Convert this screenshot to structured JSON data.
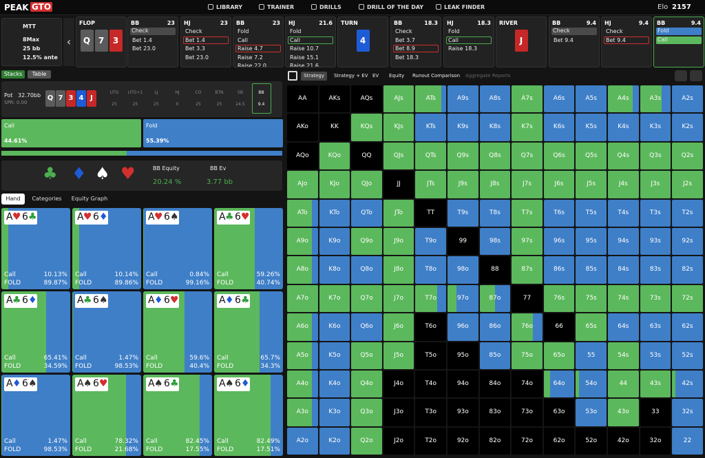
{
  "header": {
    "logo_a": "PEAK",
    "logo_b": "GTO",
    "nav": [
      "LIBRARY",
      "TRAINER",
      "DRILLS",
      "DRILL OF THE DAY",
      "LEAK FINDER"
    ],
    "elo_label": "Elo",
    "elo": "2157"
  },
  "game": {
    "format": "MTT",
    "table": "8Max",
    "stack": "25 bb",
    "ante": "12.5% ante"
  },
  "strip": [
    {
      "street": "FLOP",
      "cards": [
        {
          "rank": "Q",
          "color": "#5b5b5b"
        },
        {
          "rank": "7",
          "color": "#5b5b5b"
        },
        {
          "rank": "3",
          "color": "#c62828"
        }
      ]
    },
    {
      "pos": "BB",
      "stack": "23",
      "actions": [
        "Check",
        "Bet 1.4",
        "Bet 23.0"
      ],
      "chosen": 0,
      "style": "gray"
    },
    {
      "pos": "HJ",
      "stack": "23",
      "actions": [
        "Check",
        "Bet 1.4",
        "Bet 3.3",
        "Bet 23.0"
      ],
      "chosen": 1,
      "style": "red"
    },
    {
      "pos": "BB",
      "stack": "23",
      "actions": [
        "Fold",
        "Call",
        "Raise 4.7",
        "Raise 7.2",
        "Raise 22.0"
      ],
      "chosen": 2,
      "style": "red"
    },
    {
      "pos": "HJ",
      "stack": "21.6",
      "actions": [
        "Fold",
        "Call",
        "Raise 10.7",
        "Raise 15.1",
        "Raise 21.6"
      ],
      "chosen": 1,
      "style": "green"
    },
    {
      "street": "TURN",
      "cards": [
        {
          "rank": "4",
          "color": "#1e5bd6"
        }
      ]
    },
    {
      "pos": "BB",
      "stack": "18.3",
      "actions": [
        "Check",
        "Bet 3.7",
        "Bet 8.9",
        "Bet 18.3"
      ],
      "chosen": 2,
      "style": "red"
    },
    {
      "pos": "HJ",
      "stack": "18.3",
      "actions": [
        "Fold",
        "Call",
        "Raise 18.3"
      ],
      "chosen": 1,
      "style": "green"
    },
    {
      "street": "RIVER",
      "cards": [
        {
          "rank": "J",
          "color": "#c62828"
        }
      ]
    },
    {
      "pos": "BB",
      "stack": "9.4",
      "actions": [
        "Check",
        "Bet 9.4"
      ],
      "chosen": 0,
      "style": "gray"
    },
    {
      "pos": "HJ",
      "stack": "9.4",
      "actions": [
        "Check",
        "Bet 9.4"
      ],
      "chosen": 1,
      "style": "red"
    },
    {
      "pos": "BB",
      "stack": "9.4",
      "actions": [
        "Fold",
        "Call"
      ],
      "chosen": null,
      "style": "fill",
      "active": true
    }
  ],
  "left": {
    "tabs": [
      "Stacks",
      "Table"
    ],
    "pot_label": "Pot",
    "pot": "32.70bb",
    "spr": "SPR: 0.00",
    "board": [
      {
        "rank": "Q",
        "color": "#5b5b5b"
      },
      {
        "rank": "7",
        "color": "#5b5b5b"
      },
      {
        "rank": "3",
        "color": "#c62828"
      },
      {
        "rank": "4",
        "color": "#1e5bd6"
      },
      {
        "rank": "J",
        "color": "#c62828"
      }
    ],
    "positions": [
      "UTG",
      "UTG+1",
      "LJ",
      "HJ",
      "CO",
      "BTN",
      "SB",
      "BB"
    ],
    "stacks": [
      "25",
      "25",
      "25",
      "0",
      "25",
      "25",
      "24.5",
      "9.4"
    ],
    "active_position": 7,
    "strategy": [
      {
        "name": "Call",
        "pct": {
          "value": 44.61,
          "label": "44.61%"
        },
        "color": "#5cb85c"
      },
      {
        "name": "Fold",
        "pct": {
          "value": 55.39,
          "label": "55.39%"
        },
        "color": "#3f7fc8"
      }
    ],
    "suits": [
      {
        "s": "♣",
        "color": "#4caf50"
      },
      {
        "s": "♦",
        "color": "#1e5bd6"
      },
      {
        "s": "♠",
        "color": "#ffffff"
      },
      {
        "s": "♥",
        "color": "#d32f2f"
      }
    ],
    "equity_label": "BB Equity",
    "equity": "20.24 %",
    "ev_label": "BB Ev",
    "ev": "3.77 bb",
    "hand_tabs": [
      "Hand",
      "Categories",
      "Equity Graph"
    ],
    "call_label": "Call",
    "fold_label": "FOLD",
    "hands": [
      {
        "cards": [
          [
            "A",
            "♥"
          ],
          [
            "6",
            "♣"
          ]
        ],
        "call": {
          "value": 10.13,
          "label": "10.13%"
        },
        "fold": {
          "value": 89.87,
          "label": "89.87%"
        }
      },
      {
        "cards": [
          [
            "A",
            "♥"
          ],
          [
            "6",
            "♦"
          ]
        ],
        "call": {
          "value": 10.14,
          "label": "10.14%"
        },
        "fold": {
          "value": 89.86,
          "label": "89.86%"
        }
      },
      {
        "cards": [
          [
            "A",
            "♥"
          ],
          [
            "6",
            "♠"
          ]
        ],
        "call": {
          "value": 0.84,
          "label": "0.84%"
        },
        "fold": {
          "value": 99.16,
          "label": "99.16%"
        }
      },
      {
        "cards": [
          [
            "A",
            "♣"
          ],
          [
            "6",
            "♥"
          ]
        ],
        "call": {
          "value": 59.26,
          "label": "59.26%"
        },
        "fold": {
          "value": 40.74,
          "label": "40.74%"
        }
      },
      {
        "cards": [
          [
            "A",
            "♣"
          ],
          [
            "6",
            "♦"
          ]
        ],
        "call": {
          "value": 65.41,
          "label": "65.41%"
        },
        "fold": {
          "value": 34.59,
          "label": "34.59%"
        }
      },
      {
        "cards": [
          [
            "A",
            "♣"
          ],
          [
            "6",
            "♠"
          ]
        ],
        "call": {
          "value": 1.47,
          "label": "1.47%"
        },
        "fold": {
          "value": 98.53,
          "label": "98.53%"
        }
      },
      {
        "cards": [
          [
            "A",
            "♦"
          ],
          [
            "6",
            "♥"
          ]
        ],
        "call": {
          "value": 59.6,
          "label": "59.6%"
        },
        "fold": {
          "value": 40.4,
          "label": "40.4%"
        }
      },
      {
        "cards": [
          [
            "A",
            "♦"
          ],
          [
            "6",
            "♣"
          ]
        ],
        "call": {
          "value": 65.7,
          "label": "65.7%"
        },
        "fold": {
          "value": 34.3,
          "label": "34.3%"
        }
      },
      {
        "cards": [
          [
            "A",
            "♦"
          ],
          [
            "6",
            "♠"
          ]
        ],
        "call": {
          "value": 1.47,
          "label": "1.47%"
        },
        "fold": {
          "value": 98.53,
          "label": "98.53%"
        }
      },
      {
        "cards": [
          [
            "A",
            "♠"
          ],
          [
            "6",
            "♥"
          ]
        ],
        "call": {
          "value": 78.32,
          "label": "78.32%"
        },
        "fold": {
          "value": 21.68,
          "label": "21.68%"
        }
      },
      {
        "cards": [
          [
            "A",
            "♠"
          ],
          [
            "6",
            "♣"
          ]
        ],
        "call": {
          "value": 82.45,
          "label": "82.45%"
        },
        "fold": {
          "value": 17.55,
          "label": "17.55%"
        }
      },
      {
        "cards": [
          [
            "A",
            "♠"
          ],
          [
            "6",
            "♦"
          ]
        ],
        "call": {
          "value": 82.49,
          "label": "82.49%"
        },
        "fold": {
          "value": 17.51,
          "label": "17.51%"
        }
      }
    ]
  },
  "toolbar": [
    "Strategy",
    "Strategy + EV",
    "EV",
    "Equity",
    "Runout Comparison",
    "Aggregate Reports"
  ],
  "matrix": {
    "labels": [
      [
        "AA",
        "AKs",
        "AQs",
        "AJs",
        "ATs",
        "A9s",
        "A8s",
        "A7s",
        "A6s",
        "A5s",
        "A4s",
        "A3s",
        "A2s"
      ],
      [
        "AKo",
        "KK",
        "KQs",
        "KJs",
        "KTs",
        "K9s",
        "K8s",
        "K7s",
        "K6s",
        "K5s",
        "K4s",
        "K3s",
        "K2s"
      ],
      [
        "AQo",
        "KQo",
        "QQ",
        "QJs",
        "QTs",
        "Q9s",
        "Q8s",
        "Q7s",
        "Q6s",
        "Q5s",
        "Q4s",
        "Q3s",
        "Q2s"
      ],
      [
        "AJo",
        "KJo",
        "QJo",
        "JJ",
        "JTs",
        "J9s",
        "J8s",
        "J7s",
        "J6s",
        "J5s",
        "J4s",
        "J3s",
        "J2s"
      ],
      [
        "ATo",
        "KTo",
        "QTo",
        "JTo",
        "TT",
        "T9s",
        "T8s",
        "T7s",
        "T6s",
        "T5s",
        "T4s",
        "T3s",
        "T2s"
      ],
      [
        "A9o",
        "K9o",
        "Q9o",
        "J9o",
        "T9o",
        "99",
        "98s",
        "97s",
        "96s",
        "95s",
        "94s",
        "93s",
        "92s"
      ],
      [
        "A8o",
        "K8o",
        "Q8o",
        "J8o",
        "T8o",
        "98o",
        "88",
        "87s",
        "86s",
        "85s",
        "84s",
        "83s",
        "82s"
      ],
      [
        "A7o",
        "K7o",
        "Q7o",
        "J7o",
        "T7o",
        "97o",
        "87o",
        "77",
        "76s",
        "75s",
        "74s",
        "73s",
        "72s"
      ],
      [
        "A6o",
        "K6o",
        "Q6o",
        "J6o",
        "T6o",
        "96o",
        "86o",
        "76o",
        "66",
        "65s",
        "64s",
        "63s",
        "62s"
      ],
      [
        "A5o",
        "K5o",
        "Q5o",
        "J5o",
        "T5o",
        "95o",
        "85o",
        "75o",
        "65o",
        "55",
        "54s",
        "53s",
        "52s"
      ],
      [
        "A4o",
        "K4o",
        "Q4o",
        "J4o",
        "T4o",
        "94o",
        "84o",
        "74o",
        "64o",
        "54o",
        "44",
        "43s",
        "42s"
      ],
      [
        "A3o",
        "K3o",
        "Q3o",
        "J3o",
        "T3o",
        "93o",
        "83o",
        "73o",
        "63o",
        "53o",
        "43o",
        "33",
        "32s"
      ],
      [
        "A2o",
        "K2o",
        "Q2o",
        "J2o",
        "T2o",
        "92o",
        "82o",
        "72o",
        "62o",
        "52o",
        "42o",
        "32o",
        "22"
      ]
    ],
    "call": [
      [
        null,
        null,
        null,
        100,
        85,
        0,
        0,
        100,
        0,
        0,
        80,
        70,
        0
      ],
      [
        null,
        null,
        100,
        100,
        0,
        0,
        0,
        100,
        0,
        0,
        0,
        0,
        0
      ],
      [
        null,
        100,
        null,
        100,
        100,
        100,
        100,
        100,
        100,
        100,
        100,
        100,
        100
      ],
      [
        100,
        100,
        100,
        null,
        100,
        100,
        100,
        100,
        100,
        100,
        100,
        100,
        100
      ],
      [
        80,
        0,
        0,
        100,
        null,
        0,
        0,
        100,
        0,
        0,
        0,
        0,
        0
      ],
      [
        80,
        0,
        100,
        100,
        0,
        null,
        0,
        100,
        0,
        0,
        0,
        0,
        0
      ],
      [
        80,
        0,
        0,
        100,
        0,
        0,
        null,
        100,
        0,
        0,
        0,
        0,
        0
      ],
      [
        100,
        100,
        100,
        100,
        70,
        30,
        50,
        null,
        100,
        100,
        100,
        100,
        100
      ],
      [
        80,
        0,
        0,
        100,
        null,
        0,
        0,
        70,
        null,
        100,
        0,
        0,
        0
      ],
      [
        80,
        0,
        100,
        100,
        null,
        null,
        0,
        100,
        100,
        0,
        100,
        0,
        0
      ],
      [
        80,
        0,
        100,
        null,
        null,
        null,
        null,
        null,
        20,
        10,
        100,
        100,
        10
      ],
      [
        80,
        0,
        100,
        null,
        null,
        null,
        null,
        null,
        null,
        0,
        100,
        null,
        0
      ],
      [
        0,
        0,
        100,
        null,
        null,
        null,
        null,
        null,
        null,
        null,
        null,
        null,
        0
      ]
    ],
    "call_color": "#5cb85c",
    "fold_color": "#3f7fc8"
  }
}
